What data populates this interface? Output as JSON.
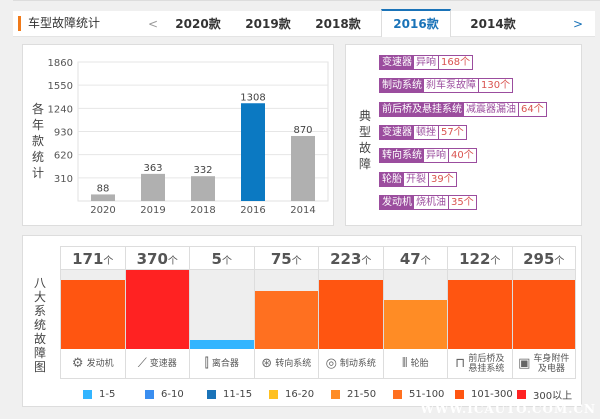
{
  "header": {
    "title": "车型故障统计",
    "prev": "<",
    "next": ">",
    "tabs": [
      "2020款",
      "2019款",
      "2018款",
      "2016款",
      "2014款"
    ],
    "active": 3
  },
  "chart_data": [
    {
      "type": "bar",
      "ylabel": "各年款统计",
      "categories": [
        "2020",
        "2019",
        "2018",
        "2016",
        "2014"
      ],
      "values": [
        88,
        363,
        332,
        1308,
        870
      ],
      "highlight": "2016",
      "colors": {
        "default": "#b0b0b0",
        "highlight": "#0b79c2"
      },
      "yticks": [
        310,
        620,
        930,
        1240,
        1550,
        1860
      ],
      "ylim": [
        0,
        1860
      ],
      "grid": true
    },
    {
      "type": "heatmap",
      "ylabel": "八大系统故障图",
      "unit": "个",
      "categories": [
        "发动机",
        "变速器",
        "离合器",
        "转向系统",
        "制动系统",
        "轮胎",
        "前后桥及悬挂系统",
        "车身附件及电器"
      ],
      "values": [
        171,
        370,
        5,
        75,
        223,
        47,
        122,
        295
      ],
      "levels": [
        0.87,
        1.0,
        0.12,
        0.74,
        0.87,
        0.62,
        0.87,
        0.87
      ],
      "colors": [
        "#ff5511",
        "#ff2222",
        "#33b5ff",
        "#ff7020",
        "#ff5511",
        "#ff8c25",
        "#ff5511",
        "#ff5511"
      ],
      "icons": [
        "engine-icon",
        "gear-shift-icon",
        "clutch-icon",
        "steering-wheel-icon",
        "brake-disc-icon",
        "tire-icon",
        "suspension-icon",
        "battery-icon"
      ],
      "legend": [
        {
          "label": "1-5",
          "color": "#33b5ff"
        },
        {
          "label": "6-10",
          "color": "#3a8ef0"
        },
        {
          "label": "11-15",
          "color": "#1a73b8"
        },
        {
          "label": "16-20",
          "color": "#ffc020"
        },
        {
          "label": "21-50",
          "color": "#ff8c25"
        },
        {
          "label": "51-100",
          "color": "#ff7020"
        },
        {
          "label": "101-300",
          "color": "#ff5511"
        },
        {
          "label": "300以上",
          "color": "#ff2222"
        }
      ]
    }
  ],
  "faults": {
    "label": "典型故障",
    "items": [
      {
        "system": "变速器",
        "fault": "异响",
        "count": "168个"
      },
      {
        "system": "制动系统",
        "fault": "刹车泵故障",
        "count": "130个"
      },
      {
        "system": "前后桥及悬挂系统",
        "fault": "减震器漏油",
        "count": "64个"
      },
      {
        "system": "变速器",
        "fault": "顿挫",
        "count": "57个"
      },
      {
        "system": "转向系统",
        "fault": "异响",
        "count": "40个"
      },
      {
        "system": "轮胎",
        "fault": "开裂",
        "count": "39个"
      },
      {
        "system": "发动机",
        "fault": "烧机油",
        "count": "35个"
      }
    ]
  },
  "watermark": "WWW.ICAUTO.COM.CN"
}
